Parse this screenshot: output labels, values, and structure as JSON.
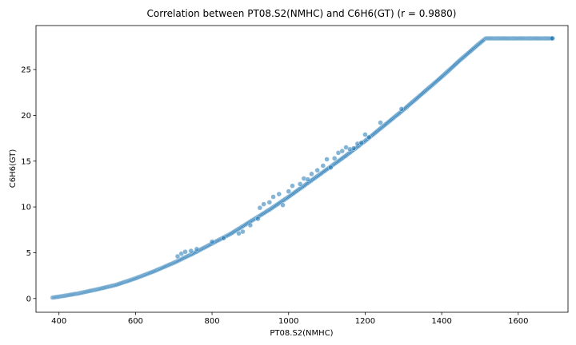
{
  "chart_data": {
    "type": "scatter",
    "title": "Correlation between PT08.S2(NMHC) and C6H6(GT) (r = 0.9880)",
    "xlabel": "PT08.S2(NMHC)",
    "ylabel": "C6H6(GT)",
    "xlim": [
      340,
      1730
    ],
    "ylim": [
      -1.5,
      29.8
    ],
    "xticks": [
      400,
      600,
      800,
      1000,
      1200,
      1400,
      1600
    ],
    "yticks": [
      0,
      5,
      10,
      15,
      20,
      25
    ],
    "grid": false,
    "point_color": "#1f77b4",
    "main_trend": {
      "x": [
        383,
        400,
        450,
        500,
        550,
        600,
        650,
        700,
        750,
        800,
        850,
        900,
        950,
        1000,
        1050,
        1100,
        1150,
        1200,
        1250,
        1300,
        1350,
        1400,
        1450,
        1500,
        1515,
        1550,
        1600,
        1650,
        1690
      ],
      "y": [
        0.1,
        0.2,
        0.55,
        1.0,
        1.5,
        2.2,
        3.0,
        3.9,
        4.9,
        6.0,
        7.1,
        8.4,
        9.7,
        11.1,
        12.6,
        14.1,
        15.6,
        17.2,
        18.9,
        20.6,
        22.4,
        24.2,
        26.1,
        27.9,
        28.4,
        28.4,
        28.4,
        28.4,
        28.4
      ]
    },
    "outliers": {
      "x": [
        710,
        720,
        730,
        745,
        760,
        800,
        830,
        870,
        880,
        900,
        920,
        925,
        935,
        950,
        960,
        975,
        985,
        1000,
        1010,
        1030,
        1040,
        1050,
        1060,
        1075,
        1090,
        1100,
        1110,
        1120,
        1130,
        1140,
        1150,
        1160,
        1170,
        1180,
        1190,
        1200,
        1210,
        1240,
        1295
      ],
      "y": [
        4.6,
        4.9,
        5.1,
        5.2,
        5.4,
        6.2,
        6.6,
        7.1,
        7.3,
        8.0,
        8.7,
        9.9,
        10.3,
        10.5,
        11.1,
        11.4,
        10.2,
        11.7,
        12.3,
        12.5,
        13.1,
        13.0,
        13.6,
        14.0,
        14.5,
        15.2,
        14.3,
        15.3,
        15.9,
        16.1,
        16.5,
        16.3,
        16.4,
        16.9,
        17.0,
        17.9,
        17.6,
        19.2,
        20.7
      ]
    }
  }
}
